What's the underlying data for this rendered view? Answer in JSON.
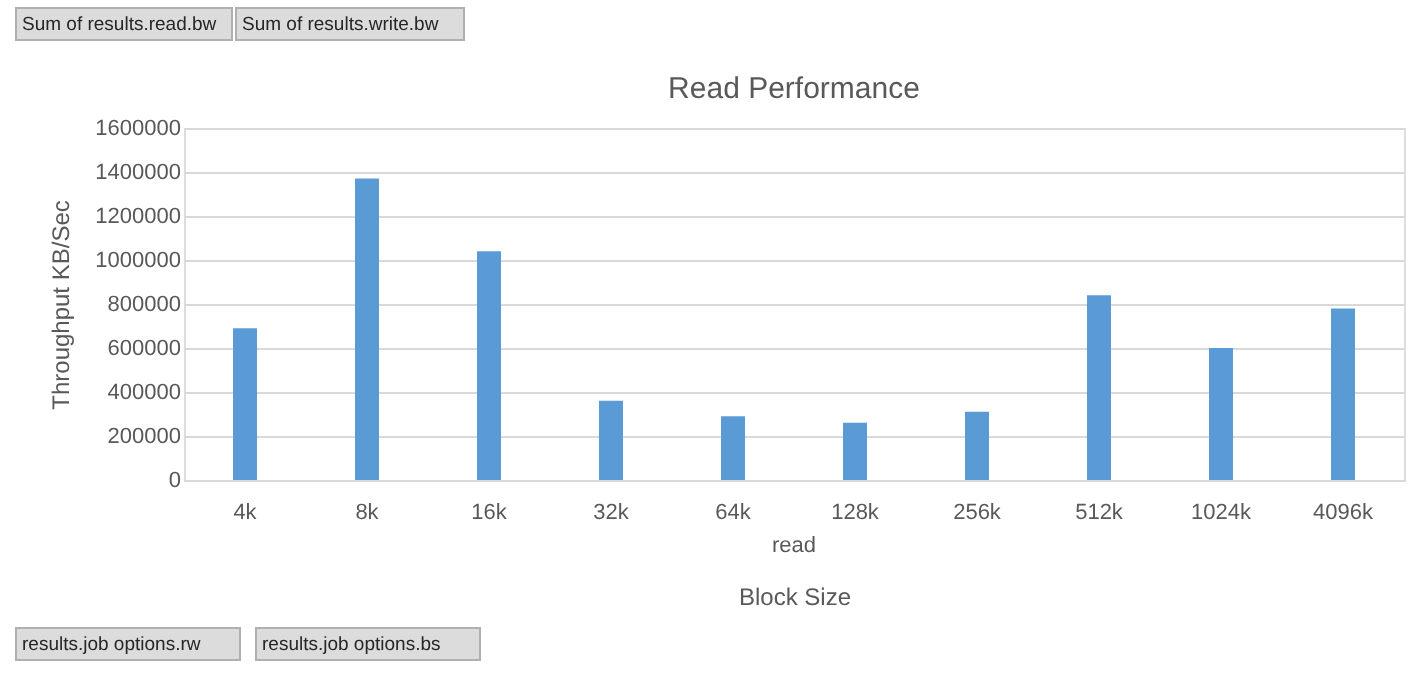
{
  "chart_data": {
    "type": "bar",
    "title": "Read Performance",
    "xlabel": "Block Size",
    "ylabel": "Throughput KB/Sec",
    "categories": [
      "4k",
      "8k",
      "16k",
      "32k",
      "64k",
      "128k",
      "256k",
      "512k",
      "1024k",
      "4096k"
    ],
    "values": [
      690000,
      1370000,
      1040000,
      360000,
      290000,
      260000,
      310000,
      840000,
      600000,
      780000
    ],
    "color": "#5b9bd5",
    "ylim": [
      0,
      1600000
    ],
    "yticks": [
      0,
      200000,
      400000,
      600000,
      800000,
      1000000,
      1200000,
      1400000,
      1600000
    ],
    "grid": "y",
    "annotations": [
      "read",
      "Sum of results.read.bw",
      "Sum of results.write.bw",
      "results.job options.rw",
      "results.job options.bs"
    ]
  }
}
